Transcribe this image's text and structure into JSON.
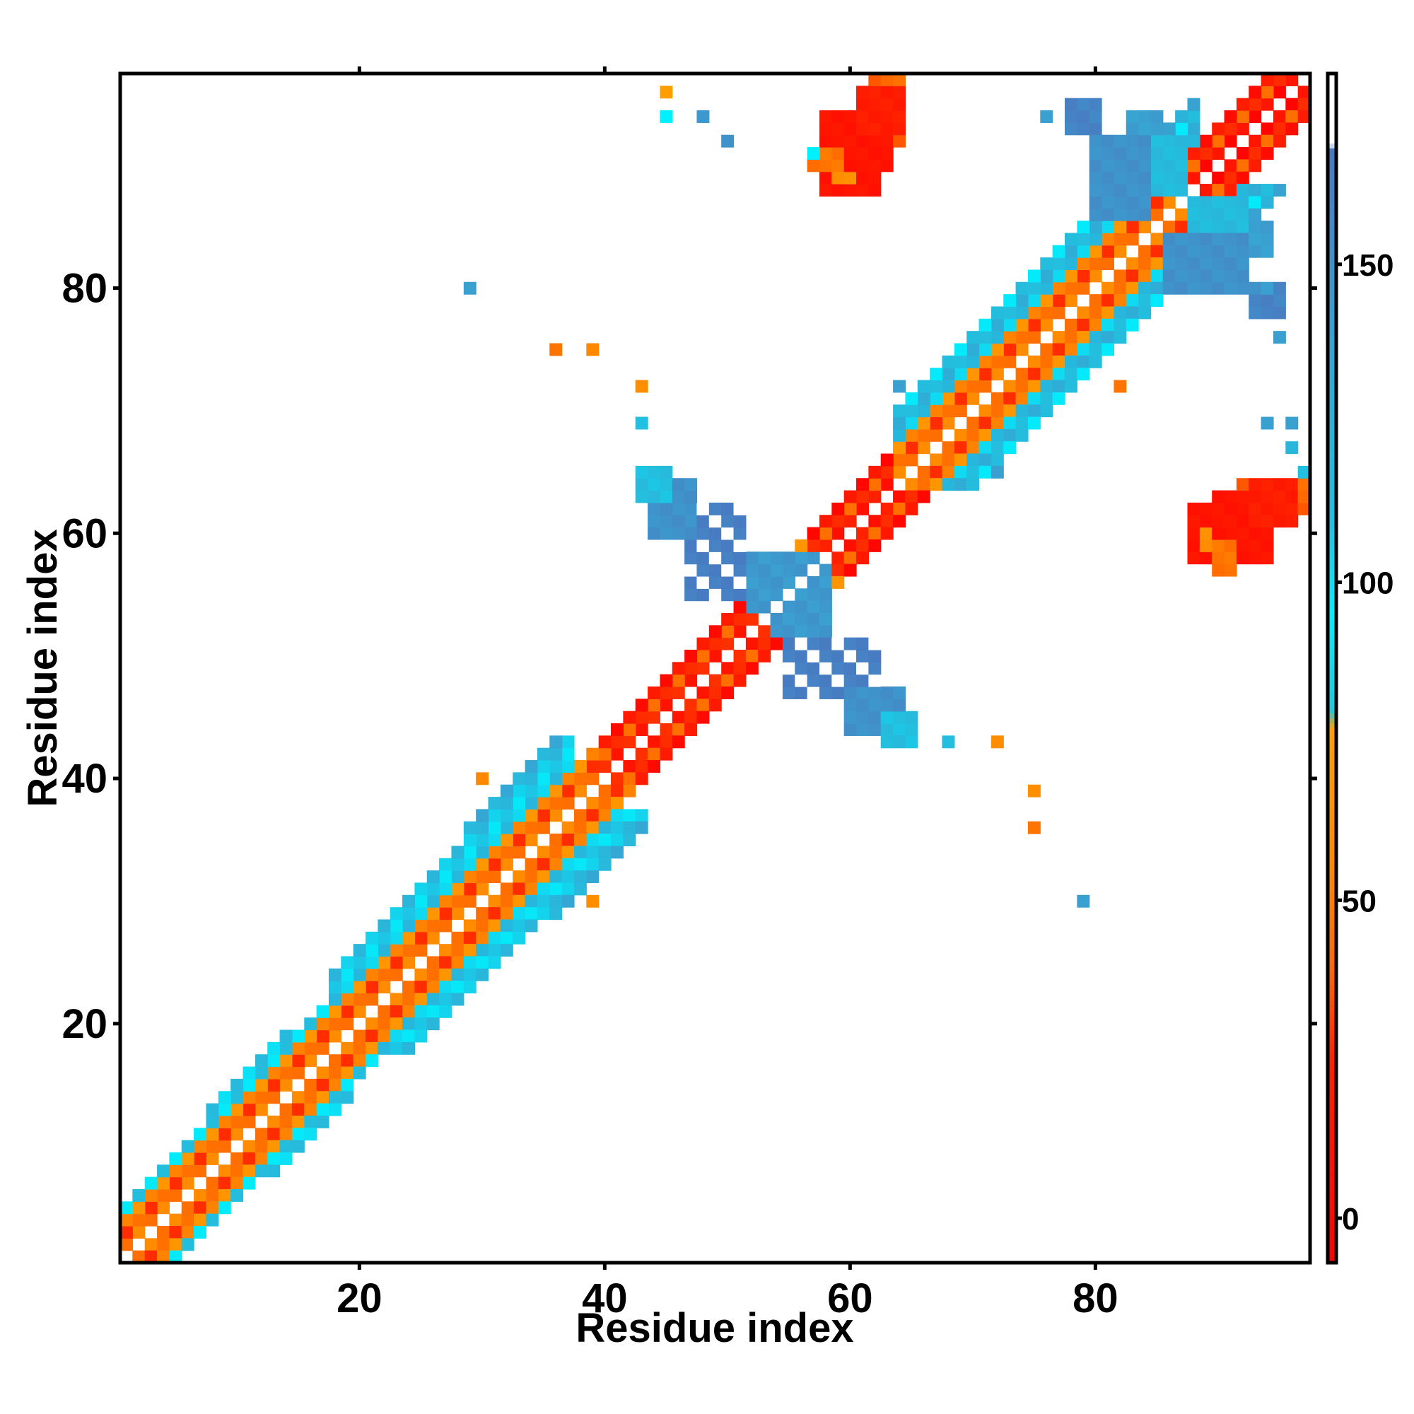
{
  "chart_data": {
    "type": "heatmap",
    "xlabel": "Residue index",
    "ylabel": "Residue index",
    "xlim": [
      0.5,
      97.5
    ],
    "ylim": [
      0.5,
      97.5
    ],
    "x_ticks": [
      20,
      40,
      60,
      80
    ],
    "y_ticks": [
      20,
      40,
      60,
      80
    ],
    "grid": false,
    "colorbar": {
      "range": [
        -7,
        180
      ],
      "ticks": [
        0,
        50,
        100,
        150
      ],
      "stops": [
        {
          "value": -7,
          "color": "#ff0000"
        },
        {
          "value": 25,
          "color": "#ff2200"
        },
        {
          "value": 40,
          "color": "#ff6a00"
        },
        {
          "value": 55,
          "color": "#ff8800"
        },
        {
          "value": 77,
          "color": "#ffa000"
        },
        {
          "value": 80,
          "color": "#1ec8dc"
        },
        {
          "value": 95,
          "color": "#00f0ff"
        },
        {
          "value": 110,
          "color": "#22c0e0"
        },
        {
          "value": 140,
          "color": "#3aa0d0"
        },
        {
          "value": 168,
          "color": "#4a78c0"
        },
        {
          "value": 169,
          "color": "#ffffff"
        },
        {
          "value": 180,
          "color": "#ffffff"
        }
      ]
    },
    "diagonal_bands": [
      {
        "from": 1,
        "to": 97,
        "offset": 1,
        "value": 50
      },
      {
        "from": 1,
        "to": 97,
        "offset": 2,
        "value": 35
      },
      {
        "from": 1,
        "to": 97,
        "offset": 3,
        "value": 60
      },
      {
        "from": 1,
        "to": 17,
        "offset": 4,
        "value": 105
      },
      {
        "from": 18,
        "to": 37,
        "offset": 4,
        "value": 110
      },
      {
        "from": 18,
        "to": 37,
        "offset": 5,
        "value": 100
      },
      {
        "from": 18,
        "to": 37,
        "offset": 6,
        "value": 112
      },
      {
        "from": 8,
        "to": 14,
        "offset": 5,
        "value": 108
      },
      {
        "from": 29,
        "to": 36,
        "offset": 7,
        "value": 125
      },
      {
        "from": 40,
        "to": 52,
        "offset": 1,
        "value": 20
      },
      {
        "from": 40,
        "to": 52,
        "offset": 3,
        "value": 10
      },
      {
        "from": 57,
        "to": 63,
        "offset": 1,
        "value": 15
      },
      {
        "from": 57,
        "to": 63,
        "offset": 3,
        "value": 8
      },
      {
        "from": 64,
        "to": 88,
        "offset": 4,
        "value": 110
      },
      {
        "from": 64,
        "to": 88,
        "offset": 5,
        "value": 120
      },
      {
        "from": 64,
        "to": 88,
        "offset": 6,
        "value": 105
      },
      {
        "from": 80,
        "to": 88,
        "offset": 7,
        "value": 130
      },
      {
        "from": 87,
        "to": 97,
        "offset": 1,
        "value": 5
      },
      {
        "from": 87,
        "to": 97,
        "offset": 3,
        "value": 12
      }
    ],
    "blocks": [
      {
        "i": [
          54,
          58
        ],
        "j": [
          52,
          58
        ],
        "value": 145
      },
      {
        "i": [
          47,
          51
        ],
        "j": [
          55,
          62
        ],
        "value": 165
      },
      {
        "i": [
          44,
          47
        ],
        "j": [
          60,
          64
        ],
        "value": 150
      },
      {
        "i": [
          43,
          45
        ],
        "j": [
          63,
          65
        ],
        "value": 112
      },
      {
        "i": [
          58,
          62
        ],
        "j": [
          88,
          94
        ],
        "value": 12
      },
      {
        "i": [
          62,
          64
        ],
        "j": [
          92,
          97
        ],
        "value": 40
      },
      {
        "i": [
          59,
          60
        ],
        "j": [
          89,
          91
        ],
        "value": 60
      },
      {
        "i": [
          90,
          94
        ],
        "j": [
          58,
          63
        ],
        "value": 12
      },
      {
        "i": [
          93,
          96
        ],
        "j": [
          61,
          64
        ],
        "value": 20
      },
      {
        "i": [
          90,
          91
        ],
        "j": [
          57,
          59
        ],
        "value": 45
      },
      {
        "i": [
          83,
          85
        ],
        "j": [
          88,
          94
        ],
        "value": 140
      },
      {
        "i": [
          78,
          80
        ],
        "j": [
          93,
          95
        ],
        "value": 160
      },
      {
        "i": [
          86,
          92
        ],
        "j": [
          80,
          84
        ],
        "value": 150
      },
      {
        "i": [
          88,
          92
        ],
        "j": [
          85,
          87
        ],
        "value": 115
      }
    ],
    "cells": [
      {
        "i": 29,
        "j": 80,
        "value": 140
      },
      {
        "i": 36,
        "j": 75,
        "value": 45
      },
      {
        "i": 39,
        "j": 75,
        "value": 55
      },
      {
        "i": 43,
        "j": 72,
        "value": 60
      },
      {
        "i": 43,
        "j": 69,
        "value": 110
      },
      {
        "i": 30,
        "j": 40,
        "value": 55
      },
      {
        "i": 39,
        "j": 30,
        "value": 60
      },
      {
        "i": 45,
        "j": 96,
        "value": 75
      },
      {
        "i": 45,
        "j": 94,
        "value": 95
      },
      {
        "i": 48,
        "j": 94,
        "value": 145
      },
      {
        "i": 50,
        "j": 92,
        "value": 150
      },
      {
        "i": 57,
        "j": 91,
        "value": 95
      },
      {
        "i": 64,
        "j": 72,
        "value": 140
      },
      {
        "i": 68,
        "j": 43,
        "value": 112
      },
      {
        "i": 72,
        "j": 43,
        "value": 60
      },
      {
        "i": 75,
        "j": 39,
        "value": 60
      },
      {
        "i": 75,
        "j": 36,
        "value": 45
      },
      {
        "i": 79,
        "j": 30,
        "value": 140
      },
      {
        "i": 72,
        "j": 65,
        "value": 140
      },
      {
        "i": 76,
        "j": 94,
        "value": 140
      },
      {
        "i": 82,
        "j": 72,
        "value": 45
      },
      {
        "i": 93,
        "j": 80,
        "value": 150
      },
      {
        "i": 94,
        "j": 80,
        "value": 140
      },
      {
        "i": 95,
        "j": 76,
        "value": 140
      },
      {
        "i": 94,
        "j": 69,
        "value": 140
      },
      {
        "i": 96,
        "j": 69,
        "value": 140
      },
      {
        "i": 96,
        "j": 67,
        "value": 120
      },
      {
        "i": 97,
        "j": 65,
        "value": 110
      }
    ]
  }
}
